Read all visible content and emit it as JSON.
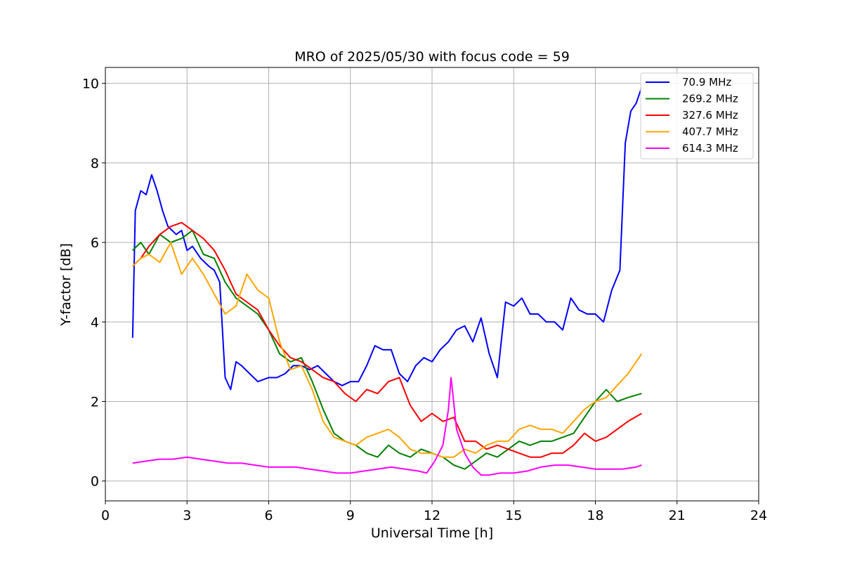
{
  "chart_data": {
    "type": "line",
    "title": "MRO of 2025/05/30 with focus code = 59",
    "xlabel": "Universal Time [h]",
    "ylabel": "Y-factor [dB]",
    "xlim": [
      0,
      24
    ],
    "ylim": [
      -0.5,
      10.4
    ],
    "x_ticks": [
      0,
      3,
      6,
      9,
      12,
      15,
      18,
      21,
      24
    ],
    "y_ticks": [
      0,
      2,
      4,
      6,
      8,
      10
    ],
    "grid": true,
    "legend_position": "top-right",
    "series": [
      {
        "name": " 70.9 MHz",
        "color": "#0000ff",
        "x": [
          1.0,
          1.1,
          1.3,
          1.5,
          1.7,
          1.9,
          2.1,
          2.3,
          2.6,
          2.8,
          3.0,
          3.2,
          3.5,
          3.8,
          4.0,
          4.2,
          4.4,
          4.6,
          4.8,
          5.0,
          5.3,
          5.6,
          6.0,
          6.3,
          6.6,
          6.9,
          7.2,
          7.5,
          7.8,
          8.1,
          8.4,
          8.7,
          9.0,
          9.3,
          9.6,
          9.9,
          10.2,
          10.5,
          10.8,
          11.1,
          11.4,
          11.7,
          12.0,
          12.3,
          12.6,
          12.9,
          13.2,
          13.5,
          13.8,
          14.1,
          14.4,
          14.7,
          15.0,
          15.3,
          15.6,
          15.9,
          16.2,
          16.5,
          16.8,
          17.1,
          17.4,
          17.7,
          18.0,
          18.3,
          18.6,
          18.9,
          19.1,
          19.3,
          19.5,
          19.7
        ],
        "y": [
          3.6,
          6.8,
          7.3,
          7.2,
          7.7,
          7.3,
          6.8,
          6.4,
          6.2,
          6.3,
          5.8,
          5.9,
          5.6,
          5.4,
          5.3,
          5.0,
          2.6,
          2.3,
          3.0,
          2.9,
          2.7,
          2.5,
          2.6,
          2.6,
          2.7,
          2.9,
          2.9,
          2.8,
          2.9,
          2.7,
          2.5,
          2.4,
          2.5,
          2.5,
          2.9,
          3.4,
          3.3,
          3.3,
          2.7,
          2.5,
          2.9,
          3.1,
          3.0,
          3.3,
          3.5,
          3.8,
          3.9,
          3.5,
          4.1,
          3.2,
          2.6,
          4.5,
          4.4,
          4.6,
          4.2,
          4.2,
          4.0,
          4.0,
          3.8,
          4.6,
          4.3,
          4.2,
          4.2,
          4.0,
          4.8,
          5.3,
          8.5,
          9.3,
          9.5,
          9.9
        ]
      },
      {
        "name": "269.2 MHz",
        "color": "#008000",
        "x": [
          1.0,
          1.3,
          1.6,
          2.0,
          2.4,
          2.8,
          3.2,
          3.6,
          4.0,
          4.4,
          4.8,
          5.2,
          5.6,
          6.0,
          6.4,
          6.8,
          7.2,
          7.6,
          8.0,
          8.4,
          8.8,
          9.2,
          9.6,
          10.0,
          10.4,
          10.8,
          11.2,
          11.6,
          12.0,
          12.4,
          12.8,
          13.2,
          13.6,
          14.0,
          14.4,
          14.8,
          15.2,
          15.6,
          16.0,
          16.4,
          16.8,
          17.2,
          17.6,
          18.0,
          18.4,
          18.8,
          19.2,
          19.7
        ],
        "y": [
          5.8,
          6.0,
          5.7,
          6.2,
          6.0,
          6.1,
          6.3,
          5.7,
          5.6,
          5.0,
          4.6,
          4.4,
          4.2,
          3.8,
          3.2,
          3.0,
          3.1,
          2.5,
          1.8,
          1.2,
          1.0,
          0.9,
          0.7,
          0.6,
          0.9,
          0.7,
          0.6,
          0.8,
          0.7,
          0.6,
          0.4,
          0.3,
          0.5,
          0.7,
          0.6,
          0.8,
          1.0,
          0.9,
          1.0,
          1.0,
          1.1,
          1.2,
          1.6,
          2.0,
          2.3,
          2.0,
          2.1,
          2.2
        ]
      },
      {
        "name": "327.6 MHz",
        "color": "#ff0000",
        "x": [
          1.0,
          1.3,
          1.6,
          2.0,
          2.4,
          2.8,
          3.2,
          3.6,
          4.0,
          4.4,
          4.8,
          5.2,
          5.6,
          6.0,
          6.4,
          6.8,
          7.2,
          7.6,
          8.0,
          8.4,
          8.8,
          9.2,
          9.6,
          10.0,
          10.4,
          10.8,
          11.2,
          11.6,
          12.0,
          12.4,
          12.8,
          13.2,
          13.6,
          14.0,
          14.4,
          14.8,
          15.2,
          15.6,
          16.0,
          16.4,
          16.8,
          17.2,
          17.6,
          18.0,
          18.4,
          18.8,
          19.2,
          19.7
        ],
        "y": [
          5.4,
          5.6,
          5.9,
          6.2,
          6.4,
          6.5,
          6.3,
          6.1,
          5.8,
          5.3,
          4.7,
          4.5,
          4.3,
          3.8,
          3.4,
          3.1,
          3.0,
          2.8,
          2.6,
          2.5,
          2.2,
          2.0,
          2.3,
          2.2,
          2.5,
          2.6,
          1.9,
          1.5,
          1.7,
          1.5,
          1.6,
          1.0,
          1.0,
          0.8,
          0.9,
          0.8,
          0.7,
          0.6,
          0.6,
          0.7,
          0.7,
          0.9,
          1.2,
          1.0,
          1.1,
          1.3,
          1.5,
          1.7
        ]
      },
      {
        "name": "407.7 MHz",
        "color": "#ffa500",
        "x": [
          1.0,
          1.3,
          1.6,
          2.0,
          2.4,
          2.8,
          3.2,
          3.6,
          4.0,
          4.4,
          4.8,
          5.2,
          5.6,
          6.0,
          6.4,
          6.8,
          7.2,
          7.6,
          8.0,
          8.4,
          8.8,
          9.2,
          9.6,
          10.0,
          10.4,
          10.8,
          11.2,
          11.6,
          12.0,
          12.4,
          12.8,
          13.2,
          13.6,
          14.0,
          14.4,
          14.8,
          15.2,
          15.6,
          16.0,
          16.4,
          16.8,
          17.2,
          17.6,
          18.0,
          18.4,
          18.8,
          19.2,
          19.7
        ],
        "y": [
          5.4,
          5.6,
          5.7,
          5.5,
          6.0,
          5.2,
          5.6,
          5.2,
          4.7,
          4.2,
          4.4,
          5.2,
          4.8,
          4.6,
          3.5,
          2.8,
          2.9,
          2.3,
          1.5,
          1.1,
          1.0,
          0.9,
          1.1,
          1.2,
          1.3,
          1.1,
          0.8,
          0.7,
          0.7,
          0.6,
          0.6,
          0.8,
          0.7,
          0.9,
          1.0,
          1.0,
          1.3,
          1.4,
          1.3,
          1.3,
          1.2,
          1.5,
          1.8,
          2.0,
          2.1,
          2.4,
          2.7,
          3.2
        ]
      },
      {
        "name": "614.3 MHz",
        "color": "#ff00ff",
        "x": [
          1.0,
          1.5,
          2.0,
          2.5,
          3.0,
          3.5,
          4.0,
          4.5,
          5.0,
          5.5,
          6.0,
          6.5,
          7.0,
          7.5,
          8.0,
          8.5,
          9.0,
          9.5,
          10.0,
          10.5,
          11.0,
          11.5,
          11.8,
          12.1,
          12.4,
          12.6,
          12.7,
          12.9,
          13.2,
          13.5,
          13.8,
          14.1,
          14.5,
          15.0,
          15.5,
          16.0,
          16.5,
          17.0,
          17.5,
          18.0,
          18.5,
          19.0,
          19.5,
          19.7
        ],
        "y": [
          0.45,
          0.5,
          0.55,
          0.55,
          0.6,
          0.55,
          0.5,
          0.45,
          0.45,
          0.4,
          0.35,
          0.35,
          0.35,
          0.3,
          0.25,
          0.2,
          0.2,
          0.25,
          0.3,
          0.35,
          0.3,
          0.25,
          0.2,
          0.5,
          0.9,
          1.8,
          2.6,
          1.3,
          0.7,
          0.35,
          0.15,
          0.15,
          0.2,
          0.2,
          0.25,
          0.35,
          0.4,
          0.4,
          0.35,
          0.3,
          0.3,
          0.3,
          0.35,
          0.4
        ]
      }
    ]
  }
}
